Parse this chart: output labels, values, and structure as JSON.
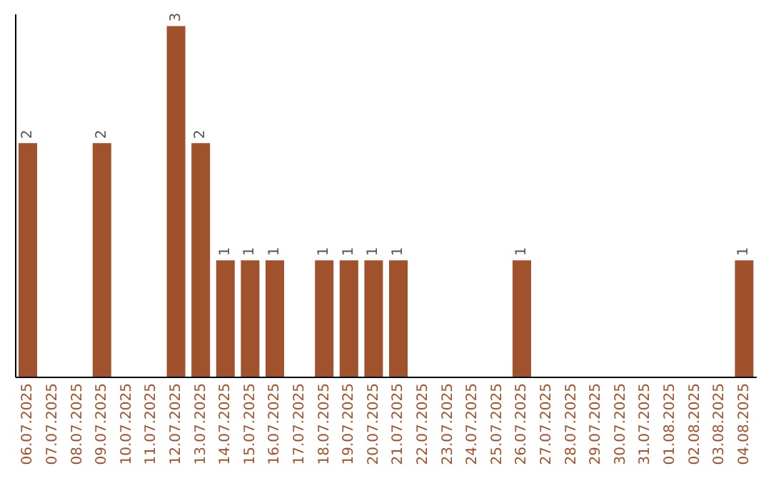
{
  "chart_data": {
    "type": "bar",
    "categories": [
      "06.07.2025",
      "07.07.2025",
      "08.07.2025",
      "09.07.2025",
      "10.07.2025",
      "11.07.2025",
      "12.07.2025",
      "13.07.2025",
      "14.07.2025",
      "15.07.2025",
      "16.07.2025",
      "17.07.2025",
      "18.07.2025",
      "19.07.2025",
      "20.07.2025",
      "21.07.2025",
      "22.07.2025",
      "23.07.2025",
      "24.07.2025",
      "25.07.2025",
      "26.07.2025",
      "27.07.2025",
      "28.07.2025",
      "29.07.2025",
      "30.07.2025",
      "31.07.2025",
      "01.08.2025",
      "02.08.2025",
      "03.08.2025",
      "04.08.2025"
    ],
    "values": [
      2,
      0,
      0,
      2,
      0,
      0,
      3,
      2,
      1,
      1,
      1,
      0,
      1,
      1,
      1,
      1,
      0,
      0,
      0,
      0,
      1,
      0,
      0,
      0,
      0,
      0,
      0,
      0,
      0,
      1
    ],
    "value_labels": [
      "2",
      null,
      null,
      "2",
      null,
      null,
      "3",
      "2",
      "1",
      "1",
      "1",
      null,
      "1",
      "1",
      "1",
      "1",
      null,
      null,
      null,
      null,
      "1",
      null,
      null,
      null,
      null,
      null,
      null,
      null,
      null,
      "1"
    ],
    "color": "#a0522d",
    "ylim": [
      0,
      3.1
    ],
    "tick_labels": "x",
    "grid": false
  }
}
